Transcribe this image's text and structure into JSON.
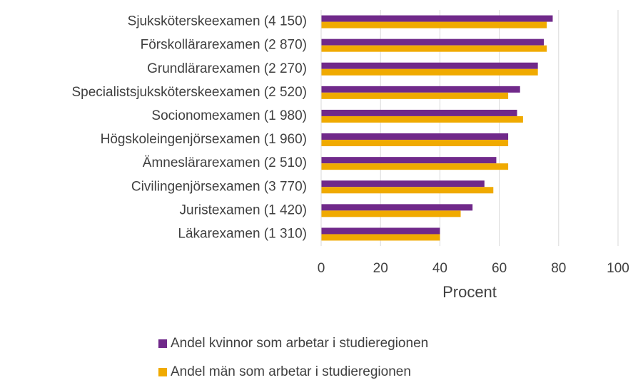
{
  "chart_data": {
    "type": "hbar",
    "categories": [
      "Sjuksköterskeexamen (4 150)",
      "Förskollärarexamen (2 870)",
      "Grundlärarexamen (2 270)",
      "Specialistsjuksköterskeexamen (2 520)",
      "Socionomexamen (1 980)",
      "Högskoleingenjörsexamen (1 960) ",
      "Ämneslärarexamen (2 510)",
      "Civilingenjörsexamen (3 770)",
      "Juristexamen (1 420)",
      "Läkarexamen (1 310)"
    ],
    "series": [
      {
        "name": "Andel kvinnor som arbetar i studieregionen",
        "color": "#70298a",
        "values": [
          78,
          75,
          73,
          67,
          66,
          63,
          59,
          55,
          51,
          40
        ]
      },
      {
        "name": "Andel män som arbetar i studieregionen",
        "color": "#f0aa00",
        "values": [
          76,
          76,
          73,
          63,
          68,
          63,
          63,
          58,
          47,
          40
        ]
      }
    ],
    "xlabel": "Procent",
    "xlim": [
      0,
      100
    ],
    "xticks": [
      0,
      20,
      40,
      60,
      80,
      100
    ],
    "grid": true
  }
}
